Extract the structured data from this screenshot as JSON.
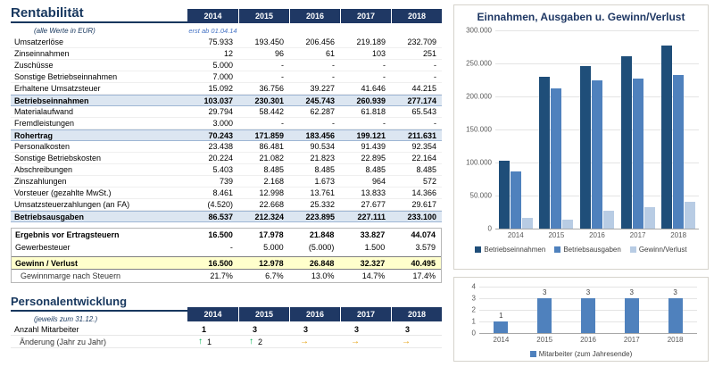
{
  "colors": {
    "header_navy": "#1F3864",
    "title_navy": "#17375E",
    "subtotal_bg": "#DCE6F1",
    "profit_bg": "#FFFFCC",
    "arrow_up": "#00B050",
    "arrow_right": "#E49C00"
  },
  "rentabilitaet": {
    "title": "Rentabilität",
    "subtitle": "(alle Werte in EUR)",
    "first_year_note": "erst ab 01.04.14",
    "years": [
      "2014",
      "2015",
      "2016",
      "2017",
      "2018"
    ],
    "rows": [
      {
        "label": "Umsatzerlöse",
        "style": "normal",
        "values": [
          "75.933",
          "193.450",
          "206.456",
          "219.189",
          "232.709"
        ]
      },
      {
        "label": "Zinseinnahmen",
        "style": "normal",
        "values": [
          "12",
          "96",
          "61",
          "103",
          "251"
        ]
      },
      {
        "label": "Zuschüsse",
        "style": "normal",
        "values": [
          "5.000",
          "-",
          "-",
          "-",
          "-"
        ]
      },
      {
        "label": "Sonstige Betriebseinnahmen",
        "style": "normal",
        "values": [
          "7.000",
          "-",
          "-",
          "-",
          "-"
        ]
      },
      {
        "label": "Erhaltene Umsatzsteuer",
        "style": "normal",
        "values": [
          "15.092",
          "36.756",
          "39.227",
          "41.646",
          "44.215"
        ]
      },
      {
        "label": "Betriebseinnahmen",
        "style": "subtotal",
        "values": [
          "103.037",
          "230.301",
          "245.743",
          "260.939",
          "277.174"
        ]
      },
      {
        "label": "Materialaufwand",
        "style": "normal",
        "values": [
          "29.794",
          "58.442",
          "62.287",
          "61.818",
          "65.543"
        ]
      },
      {
        "label": "Fremdleistungen",
        "style": "normal",
        "values": [
          "3.000",
          "-",
          "-",
          "-",
          "-"
        ]
      },
      {
        "label": "Rohertrag",
        "style": "subtotal",
        "values": [
          "70.243",
          "171.859",
          "183.456",
          "199.121",
          "211.631"
        ]
      },
      {
        "label": "Personalkosten",
        "style": "normal",
        "values": [
          "23.438",
          "86.481",
          "90.534",
          "91.439",
          "92.354"
        ]
      },
      {
        "label": "Sonstige Betriebskosten",
        "style": "normal",
        "values": [
          "20.224",
          "21.082",
          "21.823",
          "22.895",
          "22.164"
        ]
      },
      {
        "label": "Abschreibungen",
        "style": "normal",
        "values": [
          "5.403",
          "8.485",
          "8.485",
          "8.485",
          "8.485"
        ]
      },
      {
        "label": "Zinszahlungen",
        "style": "normal",
        "values": [
          "739",
          "2.168",
          "1.673",
          "964",
          "572"
        ]
      },
      {
        "label": "Vorsteuer (gezahlte MwSt.)",
        "style": "normal",
        "values": [
          "8.461",
          "12.998",
          "13.761",
          "13.833",
          "14.366"
        ]
      },
      {
        "label": "Umsatzsteuerzahlungen (an FA)",
        "style": "normal",
        "values": [
          "(4.520)",
          "22.668",
          "25.332",
          "27.677",
          "29.617"
        ]
      },
      {
        "label": "Betriebsausgaben",
        "style": "subtotal",
        "values": [
          "86.537",
          "212.324",
          "223.895",
          "227.111",
          "233.100"
        ]
      }
    ],
    "result_rows": [
      {
        "label": "Ergebnis vor Ertragsteuern",
        "style": "bold",
        "values": [
          "16.500",
          "17.978",
          "21.848",
          "33.827",
          "44.074"
        ]
      },
      {
        "label": "Gewerbesteuer",
        "style": "normal2",
        "values": [
          "-",
          "5.000",
          "(5.000)",
          "1.500",
          "3.579"
        ]
      },
      {
        "label": "Gewinn / Verlust",
        "style": "profit",
        "values": [
          "16.500",
          "12.978",
          "26.848",
          "32.327",
          "40.495"
        ]
      },
      {
        "label": "Gewinnmarge nach Steuern",
        "style": "percent",
        "values": [
          "21.7%",
          "6.7%",
          "13.0%",
          "14.7%",
          "17.4%"
        ]
      }
    ]
  },
  "personal": {
    "title": "Personalentwicklung",
    "subtitle": "(jeweils zum 31.12.)",
    "years": [
      "2014",
      "2015",
      "2016",
      "2017",
      "2018"
    ],
    "rows": [
      {
        "label": "Anzahl Mitarbeiter",
        "style": "",
        "values": [
          "1",
          "3",
          "3",
          "3",
          "3"
        ]
      },
      {
        "label": "Änderung (Jahr zu Jahr)",
        "style": "arrows",
        "cells": [
          {
            "icon": "up",
            "text": "1"
          },
          {
            "icon": "up",
            "text": "2"
          },
          {
            "icon": "right",
            "text": ""
          },
          {
            "icon": "right",
            "text": ""
          },
          {
            "icon": "right",
            "text": ""
          }
        ]
      }
    ]
  },
  "chart_data": [
    {
      "type": "bar",
      "title": "Einnahmen, Ausgaben u. Gewinn/Verlust",
      "categories": [
        "2014",
        "2015",
        "2016",
        "2017",
        "2018"
      ],
      "series": [
        {
          "name": "Betriebseinnahmen",
          "color": "#1F4E79",
          "values": [
            103037,
            230301,
            245743,
            260939,
            277174
          ]
        },
        {
          "name": "Betriebsausgaben",
          "color": "#4F81BD",
          "values": [
            86537,
            212324,
            223895,
            227111,
            233100
          ]
        },
        {
          "name": "Gewinn/Verlust",
          "color": "#B8CCE4",
          "values": [
            16500,
            12978,
            26848,
            32327,
            40495
          ]
        }
      ],
      "ylim": [
        0,
        300000
      ],
      "ytick_labels": [
        "300.000",
        "250.000",
        "200.000",
        "150.000",
        "100.000",
        "50.000",
        "0"
      ],
      "grid": true,
      "legend_position": "bottom"
    },
    {
      "type": "bar",
      "title": "",
      "categories": [
        "2014",
        "2015",
        "2016",
        "2017",
        "2018"
      ],
      "series": [
        {
          "name": "Mitarbeiter (zum Jahresende)",
          "color": "#4F81BD",
          "values": [
            1,
            3,
            3,
            3,
            3
          ]
        }
      ],
      "ylim": [
        0,
        4
      ],
      "ytick_labels": [
        "4",
        "3",
        "2",
        "1",
        "0"
      ],
      "data_labels": true,
      "grid": true,
      "legend_position": "bottom"
    }
  ]
}
